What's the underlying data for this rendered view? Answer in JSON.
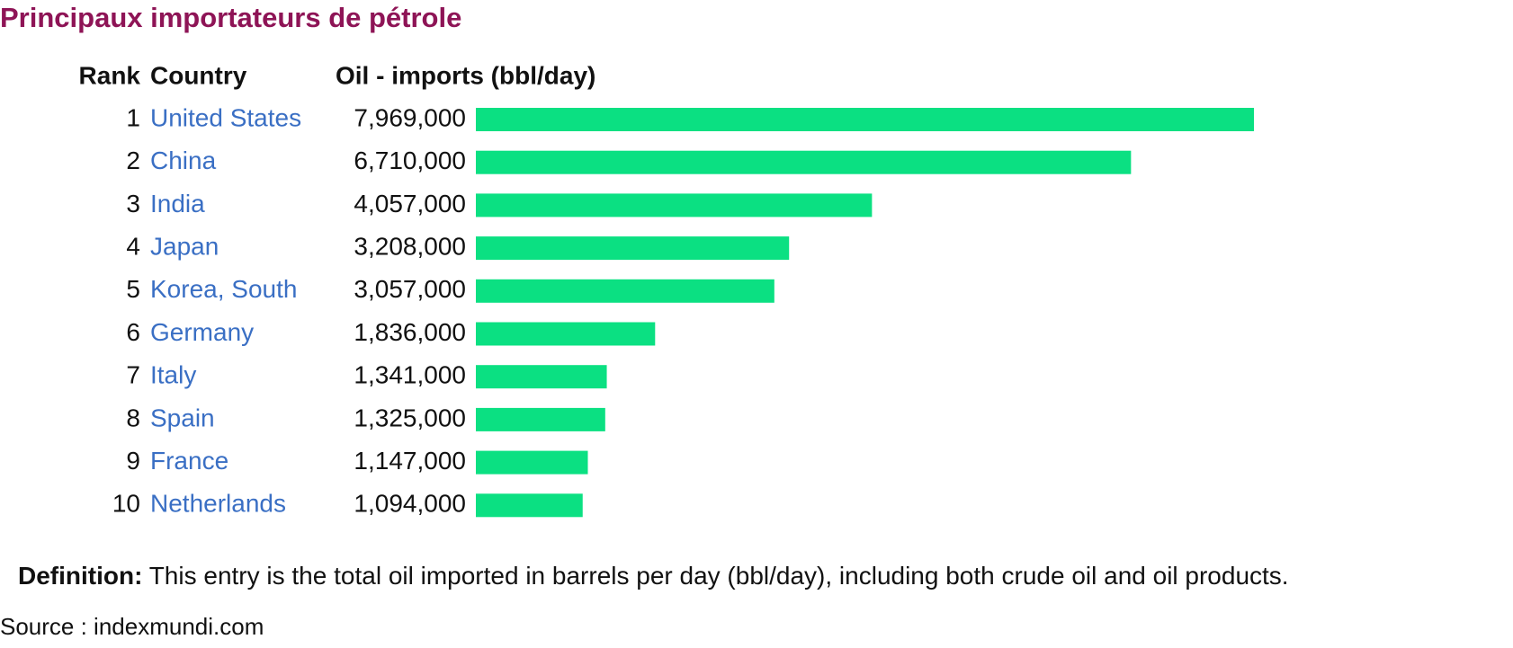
{
  "title": "Principaux importateurs de pétrole",
  "chart_data": {
    "type": "bar",
    "columns": [
      "Rank",
      "Country",
      "Oil - imports (bbl/day)"
    ],
    "ranks": [
      1,
      2,
      3,
      4,
      5,
      6,
      7,
      8,
      9,
      10
    ],
    "categories": [
      "United States",
      "China",
      "India",
      "Japan",
      "Korea, South",
      "Germany",
      "Italy",
      "Spain",
      "France",
      "Netherlands"
    ],
    "values": [
      7969000,
      6710000,
      4057000,
      3208000,
      3057000,
      1836000,
      1341000,
      1325000,
      1147000,
      1094000
    ],
    "value_labels": [
      "7,969,000",
      "6,710,000",
      "4,057,000",
      "3,208,000",
      "3,057,000",
      "1,836,000",
      "1,341,000",
      "1,325,000",
      "1,147,000",
      "1,094,000"
    ],
    "color": "#0be082"
  },
  "definition": {
    "label": "Definition:",
    "text": "This entry is the total oil imported in barrels per day (bbl/day), including both crude oil and oil products."
  },
  "source": "Source : indexmundi.com"
}
